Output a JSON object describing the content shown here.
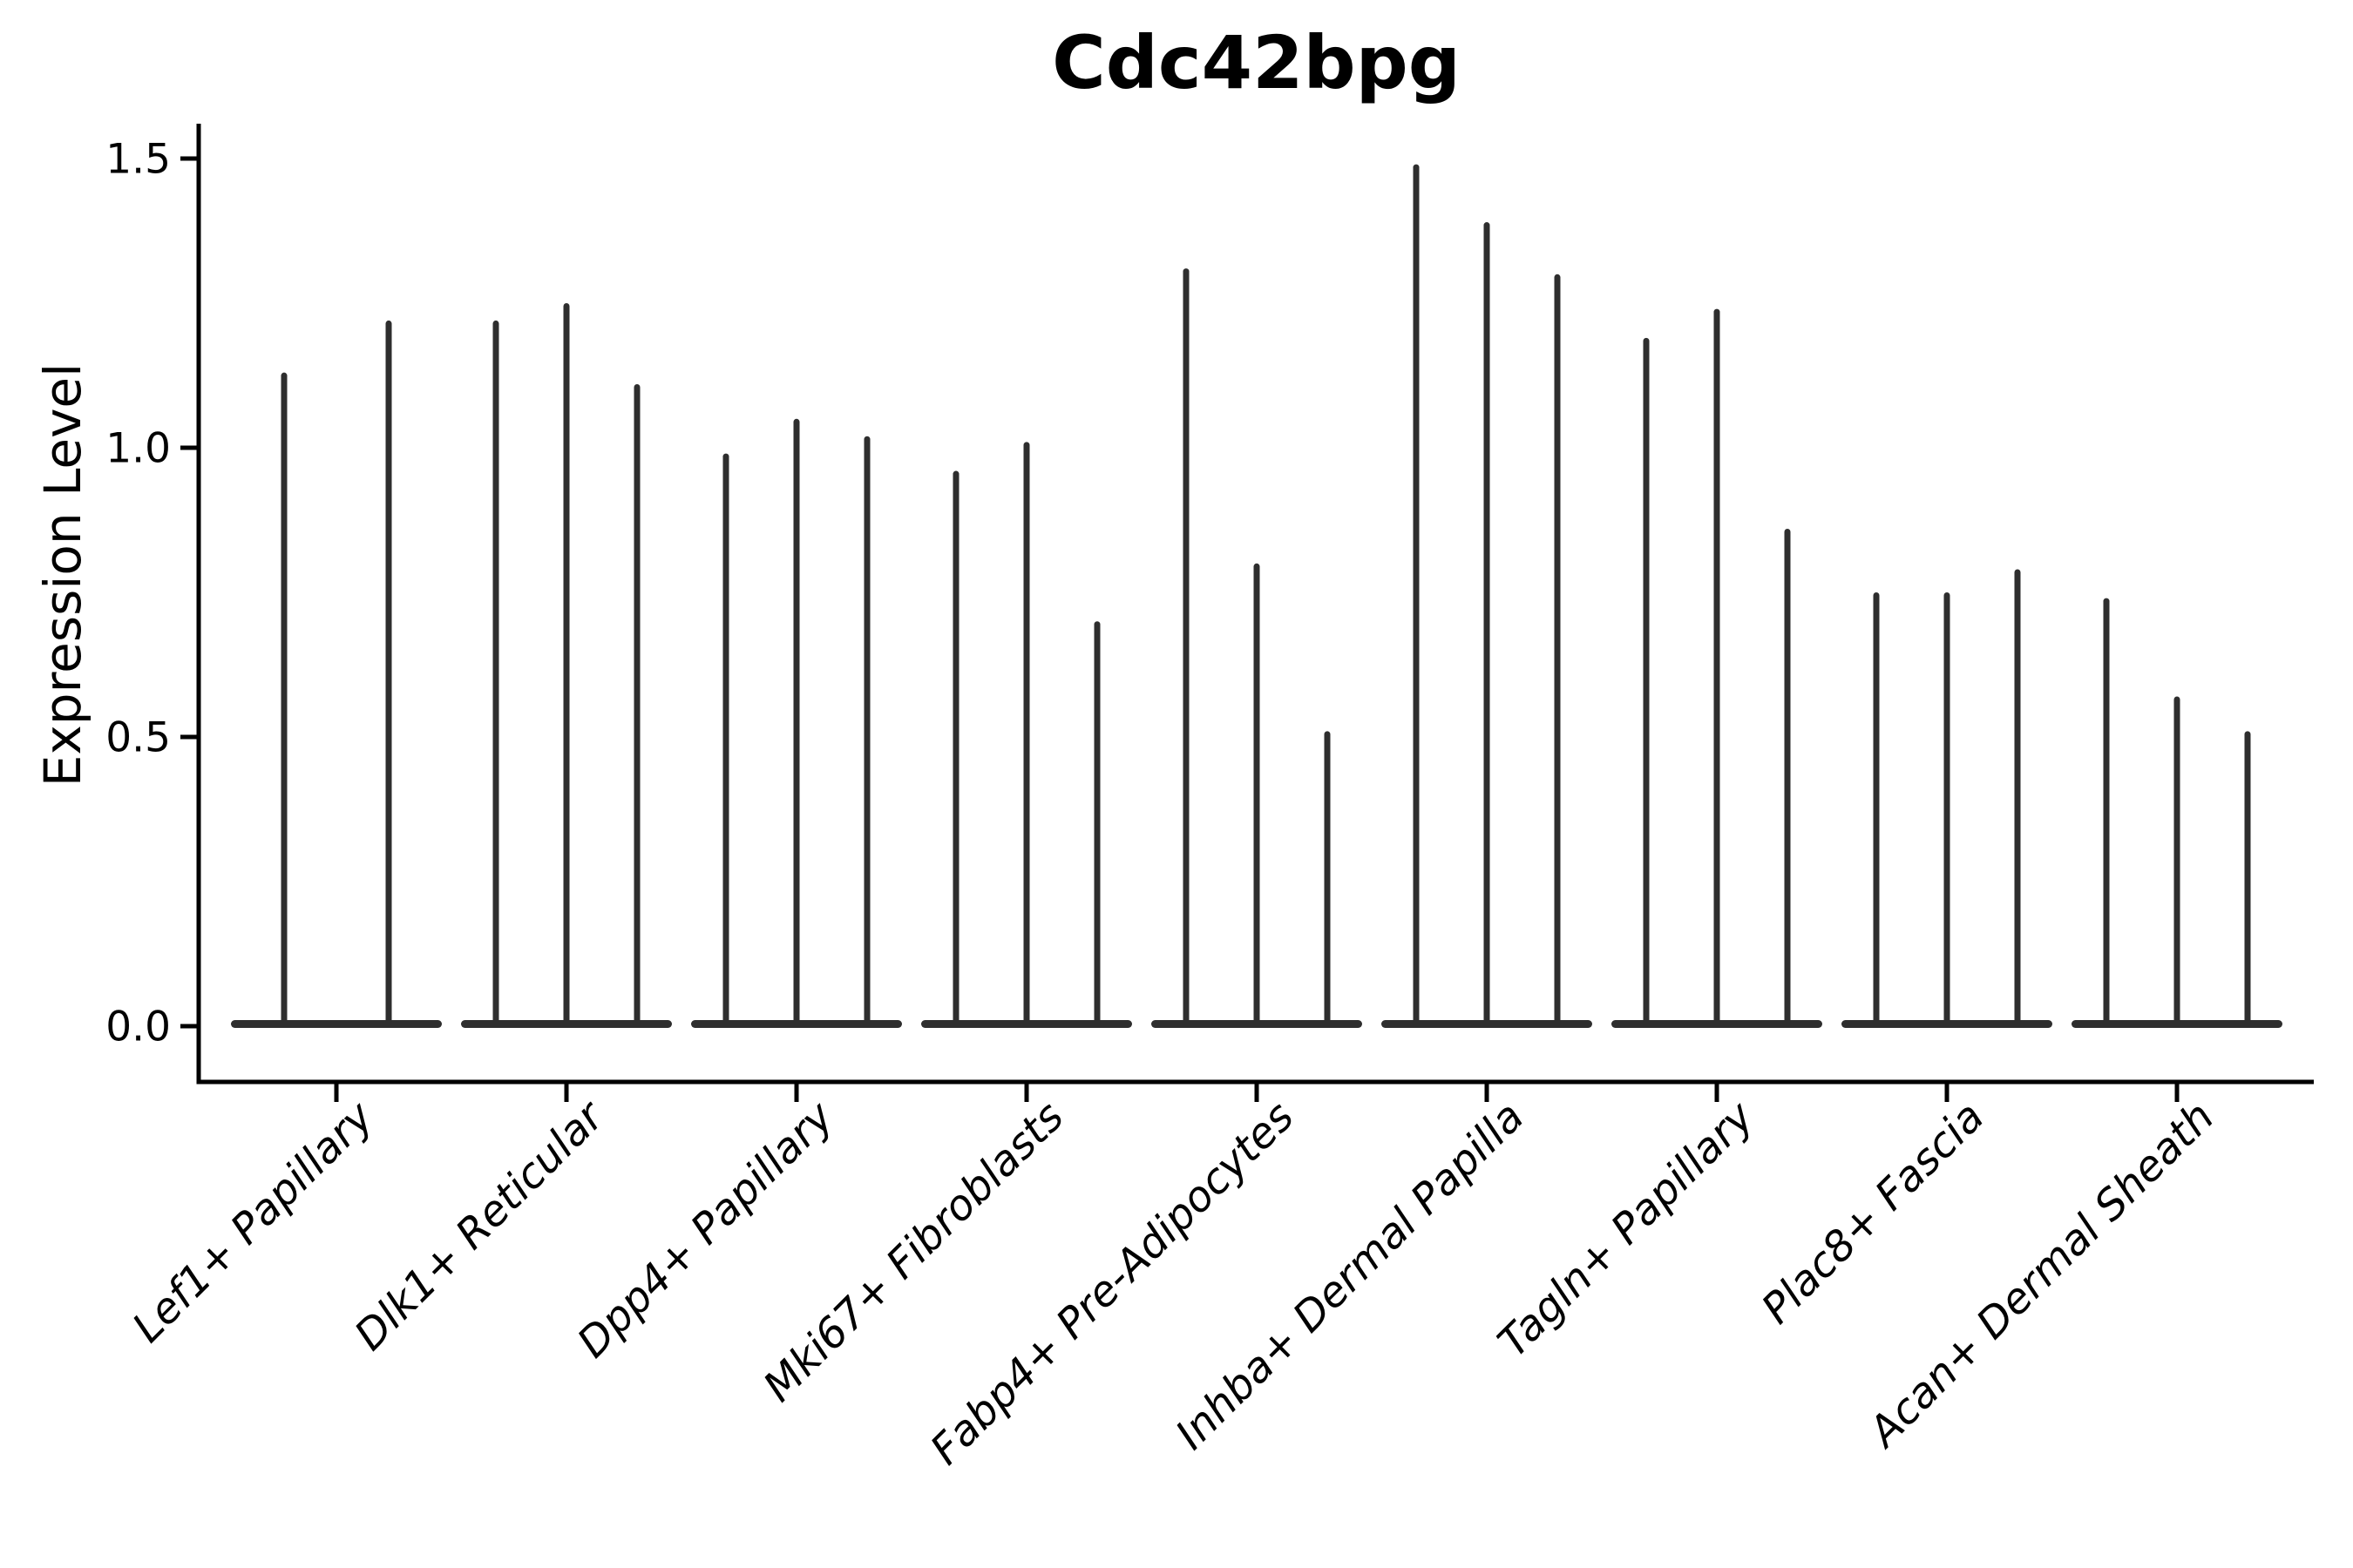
{
  "chart_data": {
    "type": "violin",
    "title": "Cdc42bpg",
    "ylabel": "Expression Level",
    "xlabel": "",
    "yticks": [
      0.0,
      0.5,
      1.0,
      1.5
    ],
    "ylim": [
      -0.1,
      1.56
    ],
    "grid": false,
    "legend": "none",
    "categories": [
      "Lef1+ Papillary",
      "Dlk1+ Reticular",
      "Dpp4+ Papillary",
      "Mki67+ Fibroblasts",
      "Fabp4+ Pre-Adipocytes",
      "Inhba+ Dermal Papilla",
      "Tagln+ Papillary",
      "Plac8+ Fascia",
      "Acan+ Dermal Sheath"
    ],
    "series": [
      {
        "category": "Lef1+ Papillary",
        "peaks": [
          1.13,
          1.22
        ]
      },
      {
        "category": "Dlk1+ Reticular",
        "peaks": [
          1.22,
          1.25,
          1.11
        ]
      },
      {
        "category": "Dpp4+ Papillary",
        "peaks": [
          0.99,
          1.05,
          1.02
        ]
      },
      {
        "category": "Mki67+ Fibroblasts",
        "peaks": [
          0.96,
          1.01,
          0.7
        ]
      },
      {
        "category": "Fabp4+ Pre-Adipocytes",
        "peaks": [
          1.31,
          0.8,
          0.51
        ]
      },
      {
        "category": "Inhba+ Dermal Papilla",
        "peaks": [
          1.49,
          1.39,
          1.3
        ]
      },
      {
        "category": "Tagln+ Papillary",
        "peaks": [
          1.19,
          1.24,
          0.86
        ]
      },
      {
        "category": "Plac8+ Fascia",
        "peaks": [
          0.75,
          0.75,
          0.79
        ]
      },
      {
        "category": "Acan+ Dermal Sheath",
        "peaks": [
          0.74,
          0.57,
          0.51
        ]
      }
    ],
    "colors": {
      "violin": "#2e2e2e",
      "axis": "#000000",
      "text": "#000000",
      "background": "#ffffff"
    }
  }
}
